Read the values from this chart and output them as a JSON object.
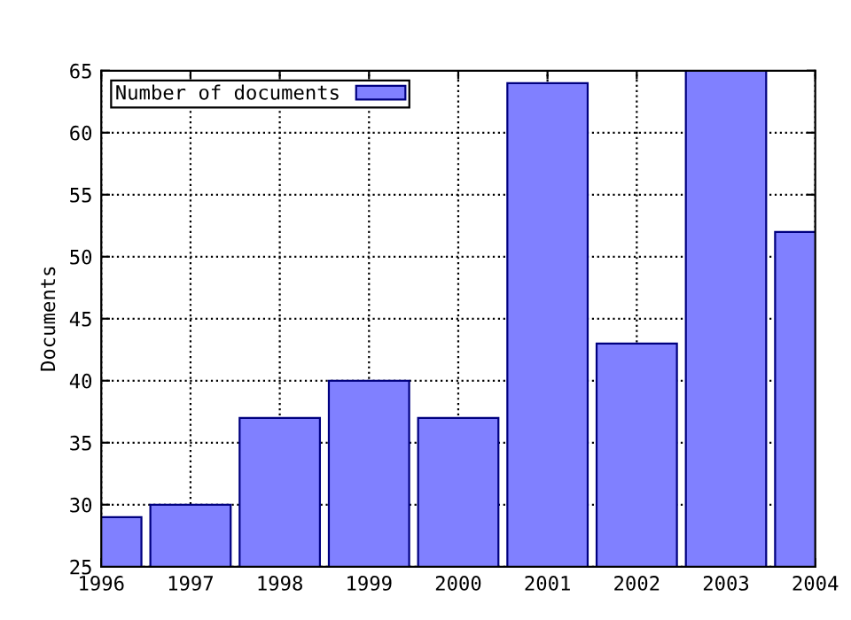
{
  "chart_data": {
    "type": "bar",
    "ylabel": "Documents",
    "x": [
      1996,
      1997,
      1998,
      1999,
      2000,
      2001,
      2002,
      2003,
      2004
    ],
    "series": [
      {
        "name": "Number of documents",
        "color": "#8080ff",
        "values": [
          29,
          30,
          37,
          40,
          37,
          64,
          43,
          65,
          52
        ]
      }
    ],
    "xlim": [
      1996,
      2004
    ],
    "xticks": [
      1996,
      1997,
      1998,
      1999,
      2000,
      2001,
      2002,
      2003,
      2004
    ],
    "ylim": [
      25,
      65
    ],
    "yticks": [
      25,
      30,
      35,
      40,
      45,
      50,
      55,
      60,
      65
    ],
    "grid": true,
    "legend": "top left"
  }
}
